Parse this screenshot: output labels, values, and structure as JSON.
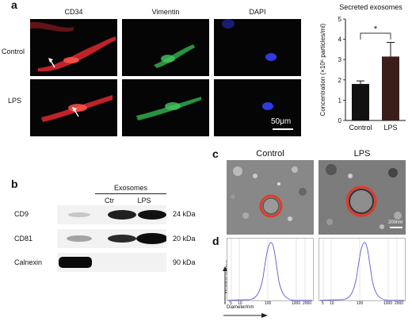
{
  "panel_a": {
    "letter": "a",
    "channels": [
      "CD34",
      "Vimentin",
      "DAPI"
    ],
    "channel_colors": [
      "#e0302b",
      "#2aa04a",
      "#3a44d8"
    ],
    "rows": [
      "Control",
      "LPS"
    ],
    "scale_bar": "50μm"
  },
  "chart_data": {
    "type": "bar",
    "title": "Secreted exosomes",
    "ylabel": "Concentration (×10⁶ particles/ml)",
    "xlabel": "",
    "categories": [
      "Control",
      "LPS"
    ],
    "values": [
      1.8,
      3.15
    ],
    "errors": [
      0.15,
      0.7
    ],
    "ylim": [
      0,
      5
    ],
    "yticks": [
      "0",
      "1",
      "2",
      "3",
      "4",
      "5"
    ],
    "bar_colors": [
      "#111111",
      "#3b1e1a"
    ],
    "significance": "*"
  },
  "panel_b": {
    "letter": "b",
    "group_label": "Exosomes",
    "lanes": [
      "Ctr",
      "LPS"
    ],
    "rows": [
      {
        "name": "CD9",
        "kda": "24 kDa"
      },
      {
        "name": "CD81",
        "kda": "20 kDa"
      },
      {
        "name": "Calnexin",
        "kda": "90 kDa"
      }
    ]
  },
  "panel_c": {
    "letter": "c",
    "columns": [
      "Control",
      "LPS"
    ],
    "scale_bar": "200nm"
  },
  "panel_d": {
    "letter": "d",
    "ylabel": "Number relative",
    "xlabel": "Diameter/nm",
    "xticks": [
      "5",
      "10",
      "100",
      "1000",
      "2000"
    ]
  }
}
